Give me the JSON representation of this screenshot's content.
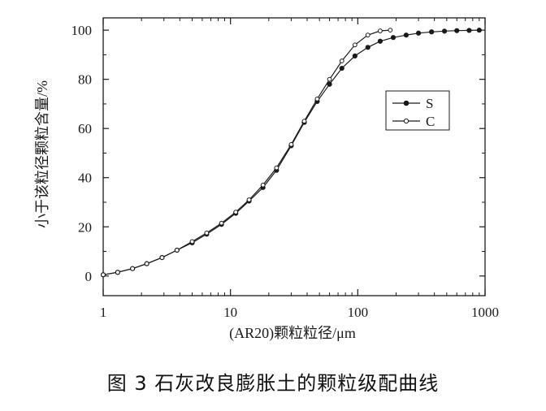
{
  "caption": "图 3 石灰改良膨胀土的颗粒级配曲线",
  "chart_data": {
    "type": "line",
    "title": "",
    "xlabel": "(AR20)颗粒粒径/μm",
    "ylabel": "小于该粒径颗粒含量/%",
    "xscale": "log",
    "xlim": [
      1,
      1000
    ],
    "ylim": [
      -8,
      105
    ],
    "xticks": [
      1,
      10,
      100,
      1000
    ],
    "xtick_labels": [
      "1",
      "10",
      "100",
      "1000"
    ],
    "yticks": [
      0,
      20,
      40,
      60,
      80,
      100
    ],
    "ytick_labels": [
      "0",
      "20",
      "40",
      "60",
      "80",
      "100"
    ],
    "grid": false,
    "legend_position": "right, upper-middle",
    "series": [
      {
        "name": "S",
        "marker": "filled-circle",
        "color": "#1a1a1a",
        "x": [
          1.0,
          1.3,
          1.7,
          2.2,
          2.9,
          3.8,
          5.0,
          6.5,
          8.5,
          11,
          14,
          18,
          23,
          30,
          38,
          48,
          60,
          75,
          95,
          120,
          150,
          190,
          240,
          300,
          380,
          480,
          600,
          750,
          900
        ],
        "y": [
          0.5,
          1.5,
          3.0,
          5.0,
          7.5,
          10.5,
          13.5,
          17.0,
          21.0,
          25.5,
          30.5,
          36.0,
          43.0,
          53.0,
          62.5,
          71.0,
          78.0,
          84.5,
          89.5,
          93.0,
          95.5,
          97.0,
          98.0,
          98.8,
          99.3,
          99.6,
          99.8,
          99.9,
          100.0
        ]
      },
      {
        "name": "C",
        "marker": "open-circle",
        "color": "#1a1a1a",
        "x": [
          1.0,
          1.3,
          1.7,
          2.2,
          2.9,
          3.8,
          5.0,
          6.5,
          8.5,
          11,
          14,
          18,
          23,
          30,
          38,
          48,
          60,
          75,
          95,
          120,
          150,
          180
        ],
        "y": [
          0.5,
          1.5,
          3.0,
          5.0,
          7.5,
          10.5,
          14.0,
          17.5,
          21.5,
          26.0,
          31.0,
          37.0,
          44.0,
          53.5,
          63.0,
          72.0,
          80.0,
          87.5,
          94.0,
          98.0,
          99.7,
          100.0
        ]
      }
    ]
  }
}
